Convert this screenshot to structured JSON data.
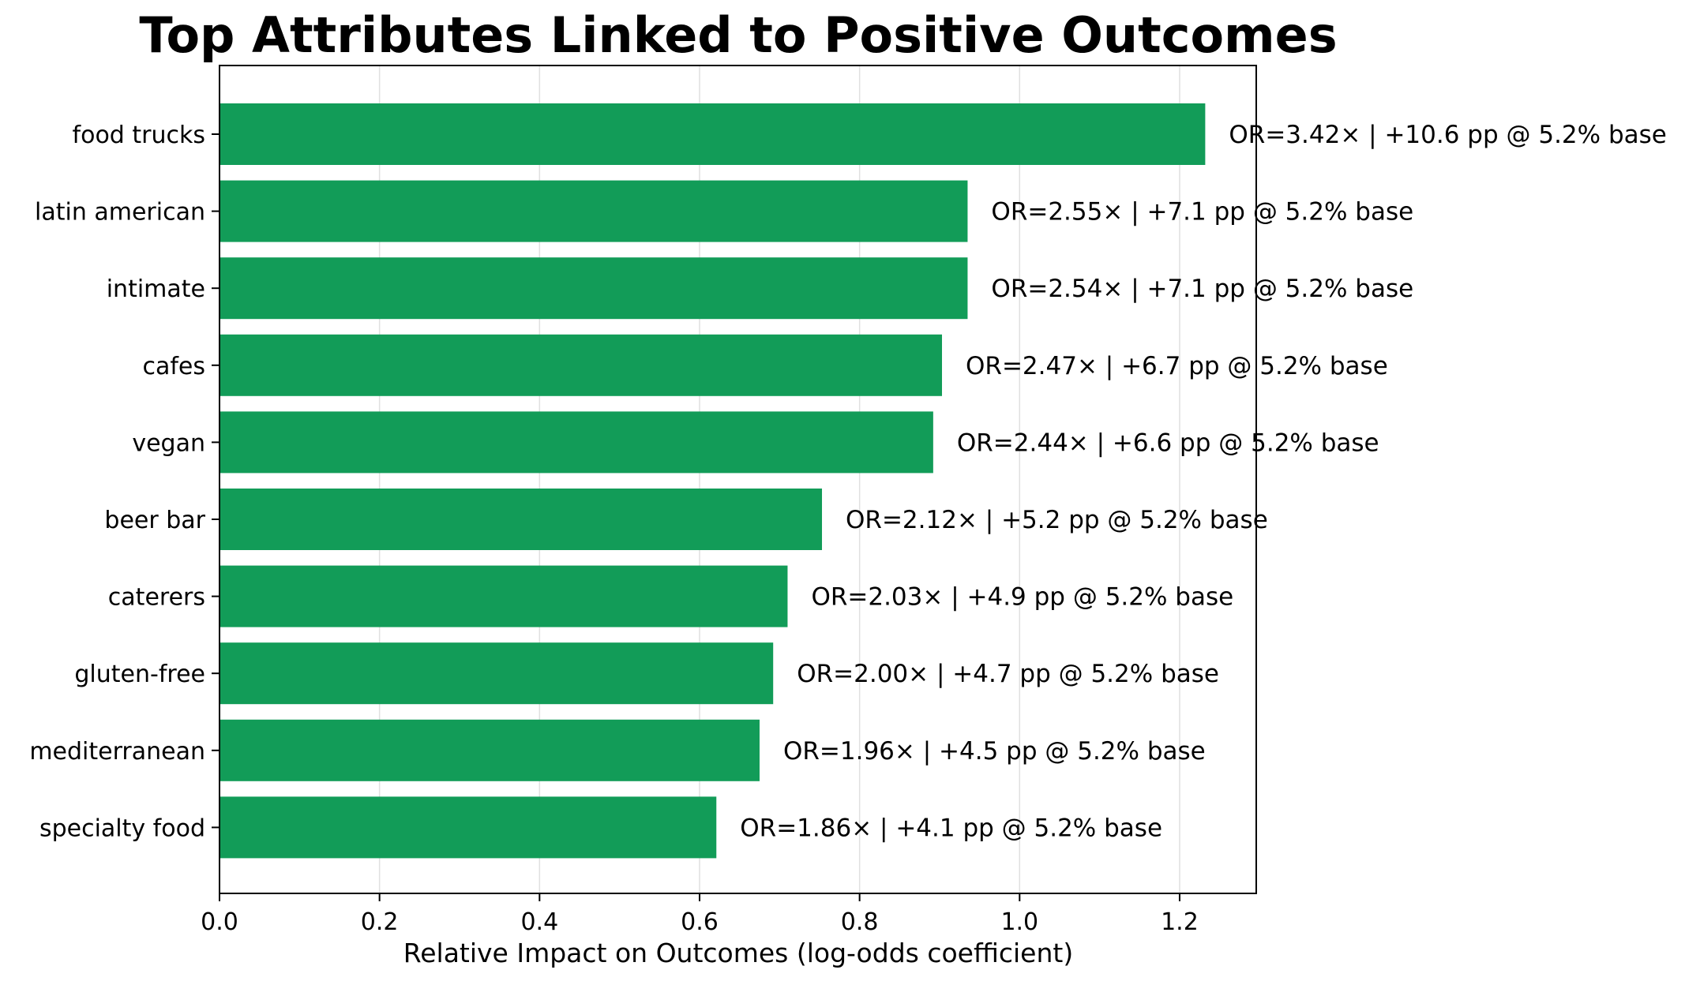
{
  "chart_data": {
    "type": "bar",
    "orientation": "horizontal",
    "title": "Top Attributes Linked to Positive Outcomes",
    "xlabel": "Relative Impact on Outcomes (log-odds coefficient)",
    "ylabel": "",
    "xlim": [
      0,
      1.29
    ],
    "xticks": [
      "0.0",
      "0.2",
      "0.4",
      "0.6",
      "0.8",
      "1.0",
      "1.2"
    ],
    "grid": "vertical",
    "bar_color": "#129c58",
    "categories": [
      "food trucks",
      "latin american",
      "intimate",
      "cafes",
      "vegan",
      "beer bar",
      "caterers",
      "gluten-free",
      "mediterranean",
      "specialty food"
    ],
    "values": [
      1.232,
      0.935,
      0.935,
      0.903,
      0.892,
      0.753,
      0.71,
      0.692,
      0.675,
      0.621
    ],
    "labels": [
      "OR=3.42× | +10.6 pp @ 5.2% base",
      "OR=2.55× | +7.1 pp @ 5.2% base",
      "OR=2.54× | +7.1 pp @ 5.2% base",
      "OR=2.47× | +6.7 pp @ 5.2% base",
      "OR=2.44× | +6.6 pp @ 5.2% base",
      "OR=2.12× | +5.2 pp @ 5.2% base",
      "OR=2.03× | +4.9 pp @ 5.2% base",
      "OR=2.00× | +4.7 pp @ 5.2% base",
      "OR=1.96× | +4.5 pp @ 5.2% base",
      "OR=1.86× | +4.1 pp @ 5.2% base"
    ]
  }
}
